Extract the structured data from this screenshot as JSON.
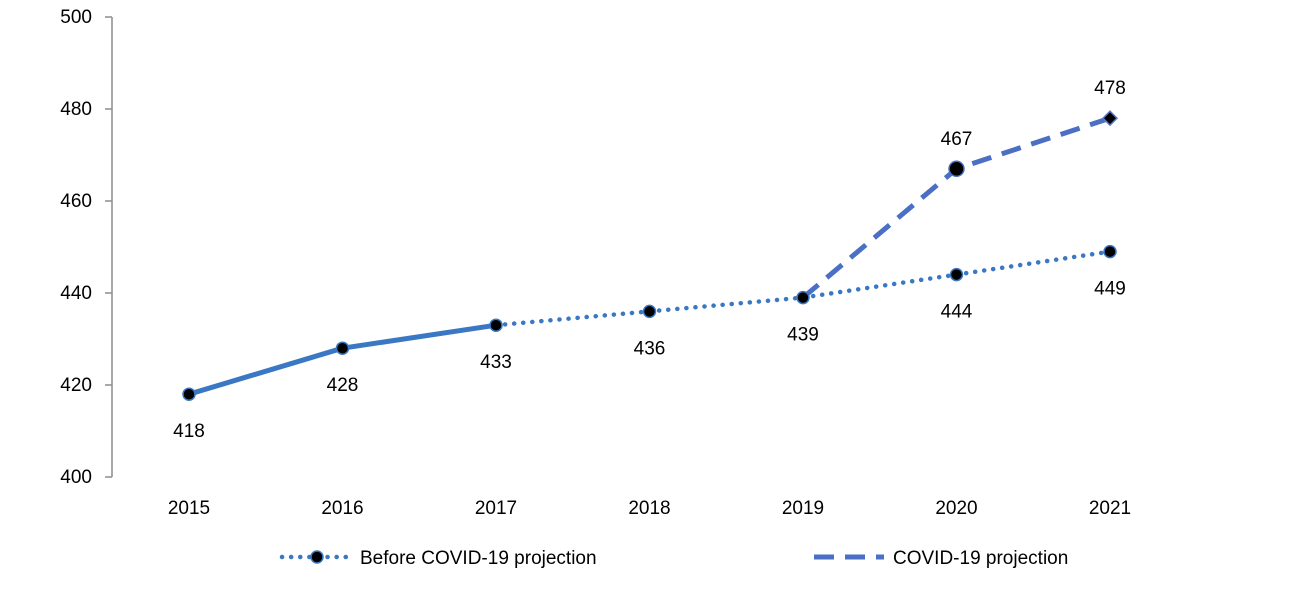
{
  "chart_data": {
    "type": "line",
    "categories": [
      "2015",
      "2016",
      "2017",
      "2018",
      "2019",
      "2020",
      "2021"
    ],
    "series": [
      {
        "key": "historical",
        "values": [
          418,
          428,
          433,
          null,
          null,
          null,
          null
        ],
        "style": "solid",
        "color": "#3a78c3"
      },
      {
        "key": "before",
        "name": "Before COVID-19 projection",
        "values": [
          null,
          null,
          433,
          436,
          439,
          444,
          449
        ],
        "style": "dotted",
        "color": "#3a78c3"
      },
      {
        "key": "covid",
        "name": "COVID-19 projection",
        "values": [
          null,
          null,
          null,
          null,
          439,
          467,
          478
        ],
        "style": "dashed",
        "color": "#4a6fc4"
      }
    ],
    "data_labels": [
      {
        "category": "2015",
        "value": 418,
        "text": "418",
        "position": "below"
      },
      {
        "category": "2016",
        "value": 428,
        "text": "428",
        "position": "below"
      },
      {
        "category": "2017",
        "value": 433,
        "text": "433",
        "position": "below"
      },
      {
        "category": "2018",
        "value": 436,
        "text": "436",
        "position": "below"
      },
      {
        "category": "2019",
        "value": 439,
        "text": "439",
        "position": "below"
      },
      {
        "category": "2020",
        "value": 444,
        "text": "444",
        "position": "below"
      },
      {
        "category": "2021",
        "value": 449,
        "text": "449",
        "position": "below"
      },
      {
        "category": "2020",
        "value": 467,
        "text": "467",
        "position": "above"
      },
      {
        "category": "2021",
        "value": 478,
        "text": "478",
        "position": "above"
      }
    ],
    "y_ticks": [
      "400",
      "420",
      "440",
      "460",
      "480",
      "500"
    ],
    "ylim": [
      400,
      500
    ],
    "grid": false,
    "legend_position": "bottom",
    "legend": [
      {
        "label": "Before COVID-19 projection",
        "style": "dotted"
      },
      {
        "label": "COVID-19 projection",
        "style": "dashed"
      }
    ]
  }
}
